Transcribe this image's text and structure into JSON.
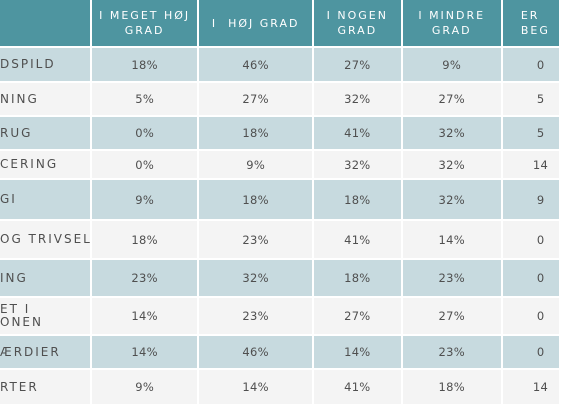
{
  "headers": [
    "",
    "I MEGET HØJ\nGRAD",
    "I  HØJ GRAD",
    "I NOGEN\nGRAD",
    "I MINDRE\nGRAD",
    "ER\nBEG"
  ],
  "rows": [
    {
      "label": "DSPILD",
      "values": [
        "18%",
        "46%",
        "27%",
        "9%",
        "0"
      ]
    },
    {
      "label": "NING",
      "values": [
        "5%",
        "27%",
        "32%",
        "27%",
        "5"
      ]
    },
    {
      "label": "RUG",
      "values": [
        "0%",
        "18%",
        "41%",
        "32%",
        "5"
      ]
    },
    {
      "label": "CERING",
      "values": [
        "0%",
        "9%",
        "32%",
        "32%",
        "14"
      ]
    },
    {
      "label": "GI",
      "values": [
        "9%",
        "18%",
        "18%",
        "32%",
        "9"
      ]
    },
    {
      "label": "OG TRIVSEL",
      "values": [
        "18%",
        "23%",
        "41%",
        "14%",
        "0"
      ]
    },
    {
      "label": "ING",
      "values": [
        "23%",
        "32%",
        "18%",
        "23%",
        "0"
      ]
    },
    {
      "label": "ET I\nONEN",
      "values": [
        "14%",
        "23%",
        "27%",
        "27%",
        "0"
      ]
    },
    {
      "label": "ÆRDIER",
      "values": [
        "14%",
        "46%",
        "14%",
        "23%",
        "0"
      ]
    },
    {
      "label": "RTER",
      "values": [
        "9%",
        "14%",
        "41%",
        "18%",
        "14"
      ]
    }
  ]
}
